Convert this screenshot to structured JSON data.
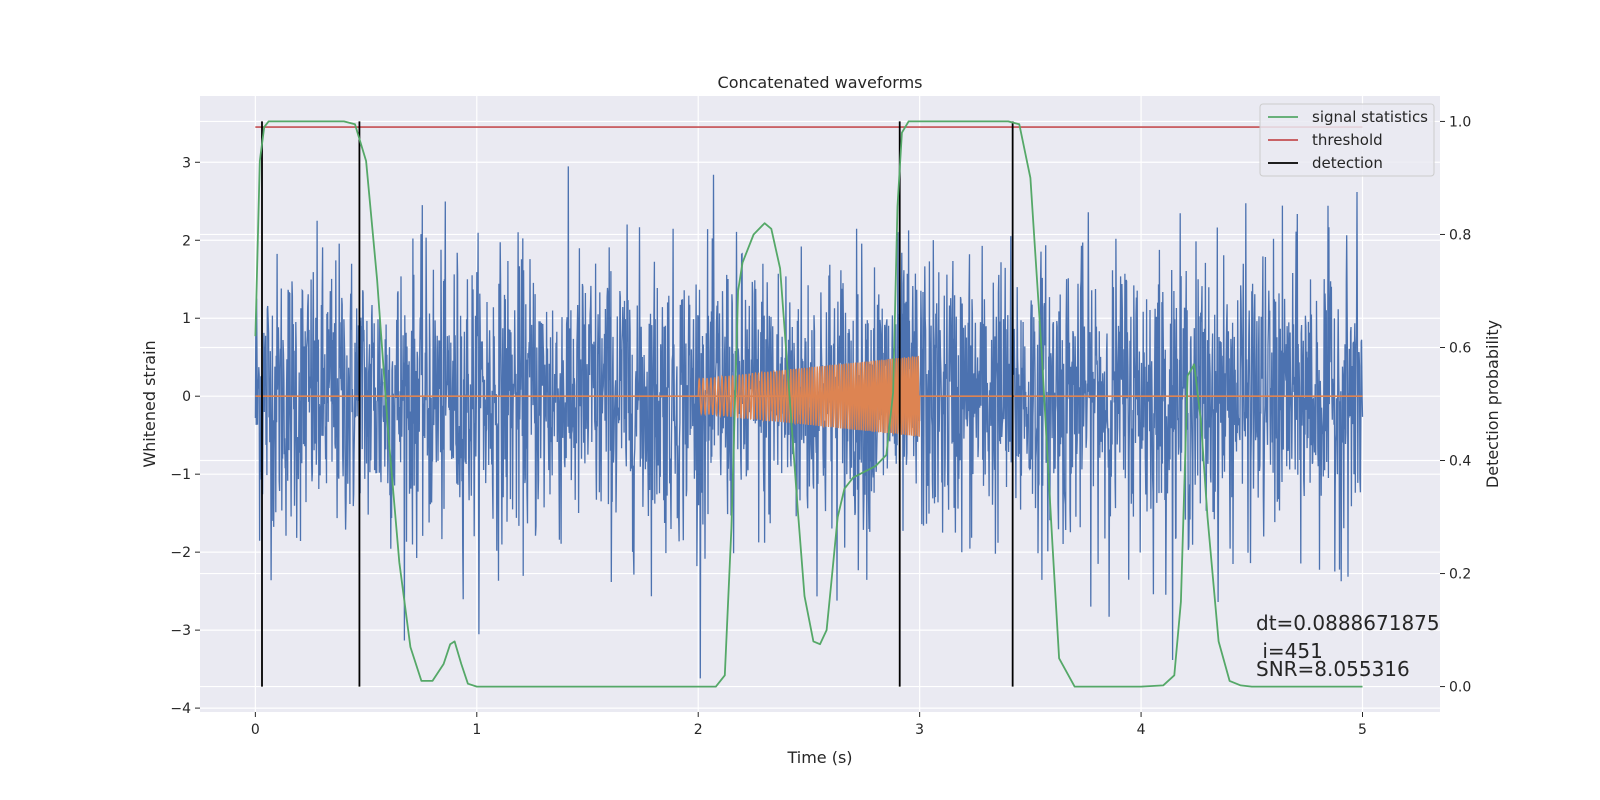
{
  "chart_data": {
    "type": "line",
    "title": "Concatenated waveforms",
    "xlabel": "Time (s)",
    "ylabel_left": "Whitened strain",
    "ylabel_right": "Detection probability",
    "xlim": [
      -0.25,
      5.35
    ],
    "ylim_left": [
      -4.05,
      3.85
    ],
    "ylim_right": [
      -0.045,
      1.045
    ],
    "x_ticks": [
      0,
      1,
      2,
      3,
      4,
      5
    ],
    "y_ticks_left": [
      -4,
      -3,
      -2,
      -1,
      0,
      1,
      2,
      3
    ],
    "y_ticks_right": [
      0.0,
      0.2,
      0.4,
      0.6,
      0.8,
      1.0
    ],
    "x_tick_labels": [
      "0",
      "1",
      "2",
      "3",
      "4",
      "5"
    ],
    "y_tick_labels_left": [
      "−4",
      "−3",
      "−2",
      "−1",
      "0",
      "1",
      "2",
      "3"
    ],
    "y_tick_labels_right": [
      "0.0",
      "0.2",
      "0.4",
      "0.6",
      "0.8",
      "1.0"
    ],
    "grid": true,
    "legend_position": "top-right",
    "legend": [
      {
        "label": "signal statistics",
        "color": "#55a868"
      },
      {
        "label": "threshold",
        "color": "#c44e52"
      },
      {
        "label": "detection",
        "color": "#000000"
      }
    ],
    "strain_series": {
      "color": "#4c72b0",
      "x_range": [
        0,
        5
      ],
      "envelope_rms": 0.9,
      "peak_max": 3.1,
      "peak_min": -3.65
    },
    "injected_chirp": {
      "color": "#dd8452",
      "x_range": [
        2.0,
        3.0
      ],
      "start_amplitude": 0.22,
      "end_amplitude": 0.52
    },
    "signal_statistics": {
      "color": "#55a868",
      "axis": "right",
      "x": [
        0.0,
        0.02,
        0.04,
        0.06,
        0.1,
        0.2,
        0.3,
        0.4,
        0.45,
        0.5,
        0.55,
        0.6,
        0.65,
        0.7,
        0.75,
        0.8,
        0.85,
        0.88,
        0.9,
        0.93,
        0.96,
        1.0,
        1.5,
        2.0,
        2.08,
        2.12,
        2.15,
        2.18,
        2.2,
        2.25,
        2.3,
        2.33,
        2.37,
        2.4,
        2.45,
        2.48,
        2.52,
        2.55,
        2.58,
        2.6,
        2.63,
        2.66,
        2.7,
        2.75,
        2.8,
        2.85,
        2.88,
        2.9,
        2.92,
        2.95,
        3.0,
        3.2,
        3.4,
        3.45,
        3.5,
        3.55,
        3.6,
        3.63,
        3.7,
        4.0,
        4.1,
        4.15,
        4.18,
        4.21,
        4.24,
        4.27,
        4.3,
        4.35,
        4.4,
        4.45,
        4.5,
        5.0
      ],
      "y": [
        0.62,
        0.93,
        0.99,
        1.0,
        1.0,
        1.0,
        1.0,
        1.0,
        0.995,
        0.93,
        0.72,
        0.45,
        0.22,
        0.07,
        0.01,
        0.01,
        0.04,
        0.075,
        0.08,
        0.04,
        0.005,
        0.0,
        0.0,
        0.0,
        0.0,
        0.02,
        0.28,
        0.7,
        0.75,
        0.8,
        0.82,
        0.81,
        0.74,
        0.58,
        0.31,
        0.16,
        0.08,
        0.075,
        0.1,
        0.18,
        0.3,
        0.35,
        0.37,
        0.38,
        0.39,
        0.41,
        0.52,
        0.85,
        0.98,
        1.0,
        1.0,
        1.0,
        1.0,
        0.995,
        0.9,
        0.6,
        0.25,
        0.05,
        0.0,
        0.0,
        0.002,
        0.02,
        0.15,
        0.55,
        0.57,
        0.47,
        0.3,
        0.08,
        0.01,
        0.002,
        0.0,
        0.0
      ]
    },
    "threshold": {
      "color": "#c44e52",
      "axis": "right",
      "value": 0.99,
      "x_range": [
        0,
        5
      ]
    },
    "detections": {
      "color": "#000000",
      "axis": "right",
      "x": [
        0.03,
        0.47,
        2.91,
        3.42
      ],
      "y_range": [
        0.0,
        1.0
      ]
    },
    "annotations": {
      "dt": "dt=0.0888671875",
      "i": " i=451",
      "snr": "SNR=8.055316"
    }
  }
}
